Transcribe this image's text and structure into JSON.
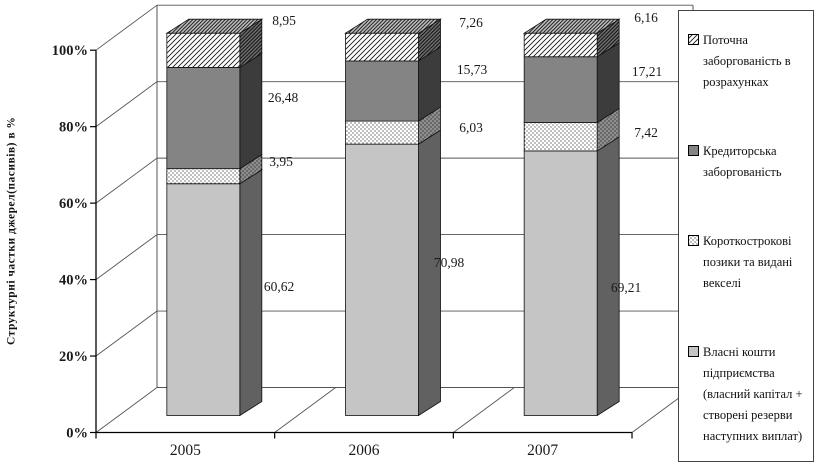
{
  "chart_data": {
    "type": "bar",
    "stacked": true,
    "effect": "3d",
    "title": "",
    "ylabel": "Структурні частки джерел(пасивів) в %",
    "xlabel": "",
    "ylim": [
      0,
      100
    ],
    "y_ticks": [
      "0%",
      "20%",
      "40%",
      "60%",
      "80%",
      "100%"
    ],
    "grid": true,
    "legend_position": "right",
    "categories": [
      "2005",
      "2006",
      "2007"
    ],
    "series": [
      {
        "name": "Власні кошти підприємства (власний капітал + створені резерви наступних виплат)",
        "pattern": "solid-light-gray",
        "values": [
          60.62,
          70.98,
          69.21
        ]
      },
      {
        "name": "Короткострокові позики та видані векселі",
        "pattern": "dots",
        "values": [
          3.95,
          6.03,
          7.42
        ]
      },
      {
        "name": "Кредиторська заборгованість",
        "pattern": "solid-dark-gray",
        "values": [
          26.48,
          15.73,
          17.21
        ]
      },
      {
        "name": "Поточна заборгованість в розрахунках",
        "pattern": "diagonal-hatch",
        "values": [
          8.95,
          7.26,
          6.16
        ]
      }
    ],
    "data_labels": [
      [
        "60,62",
        "3,95",
        "26,48",
        "8,95"
      ],
      [
        "70,98",
        "6,03",
        "15,73",
        "7,26"
      ],
      [
        "69,21",
        "7,42",
        "17,21",
        "6,16"
      ]
    ],
    "legend": [
      {
        "label": "Поточна заборгованість в розрахунках",
        "swatch": "diagonal-hatch"
      },
      {
        "label": "Кредиторська заборгованість",
        "swatch": "solid-dark-gray"
      },
      {
        "label": "Короткострокові позики та видані векселі",
        "swatch": "dots"
      },
      {
        "label": "Власні кошти підприємства (власний капітал + створені резерви наступних виплат)",
        "swatch": "solid-light-gray"
      }
    ],
    "colors": {
      "light_gray_front": "#c5c5c5",
      "light_gray_side": "#616161",
      "dark_gray_front": "#848484",
      "dark_gray_side": "#3c3c3c",
      "pattern_ink": "#000000",
      "axis": "#000000",
      "gridline": "#555555"
    }
  }
}
